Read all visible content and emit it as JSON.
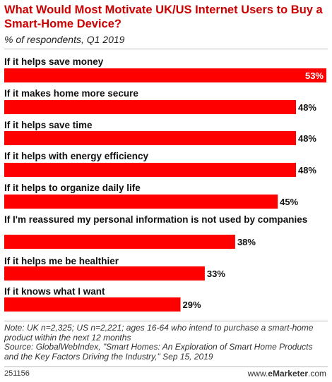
{
  "header": {
    "title": "What Would Most Motivate UK/US Internet Users to Buy a Smart-Home Device?",
    "subtitle": "% of respondents, Q1 2019"
  },
  "chart_data": {
    "type": "bar",
    "orientation": "horizontal",
    "categories": [
      "If it helps save money",
      "If it makes home more secure",
      "If it helps save time",
      "If it helps with energy efficiency",
      "If it helps  to organize daily life",
      "If I'm reassured my personal information is not used by companies",
      "If it helps me be healthier",
      "If it knows what I want"
    ],
    "values": [
      53,
      48,
      48,
      48,
      45,
      38,
      33,
      29
    ],
    "value_labels": [
      "53%",
      "48%",
      "48%",
      "48%",
      "45%",
      "38%",
      "33%",
      "29%"
    ],
    "bar_color": "#ff0000",
    "xlim": [
      0,
      53
    ],
    "grid": false,
    "legend": "none"
  },
  "footer": {
    "note": "Note: UK n=2,325; US n=2,221; ages 16-64 who intend to purchase a smart-home product within the next 12 months",
    "source": "Source: GlobalWebIndex, \"Smart Homes: An Exploration of Smart Home Products and the Key Factors Driving the Industry,\" Sep 15, 2019",
    "chart_id": "251156",
    "brand_prefix": "www.",
    "brand_name": "eMarketer",
    "brand_suffix": ".com"
  }
}
